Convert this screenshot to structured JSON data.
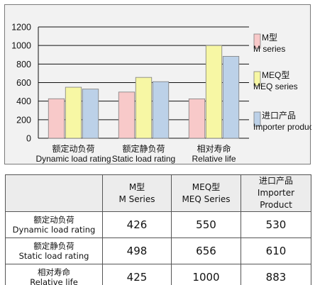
{
  "chart_data": {
    "type": "bar",
    "ylim": [
      0,
      1200
    ],
    "yticks": [
      0,
      200,
      400,
      600,
      800,
      1000,
      1200
    ],
    "grid": true,
    "legend_position": "right",
    "categories": [
      [
        "额定动负荷",
        "Dynamic load rating"
      ],
      [
        "额定静负荷",
        "Static load rating"
      ],
      [
        "相对寿命",
        "Relative life"
      ]
    ],
    "series": [
      {
        "label_lines": [
          "M型",
          "M series"
        ],
        "values": [
          426,
          498,
          425
        ],
        "color": "#f8c9c9"
      },
      {
        "label_lines": [
          "MEQ型",
          "MEQ series"
        ],
        "values": [
          550,
          656,
          1000
        ],
        "color": "#f7f7a4"
      },
      {
        "label_lines": [
          "进口产品",
          "Importer product"
        ],
        "values": [
          530,
          610,
          883
        ],
        "color": "#bcd1e8"
      }
    ]
  },
  "table": {
    "headers": [
      [
        "",
        ""
      ],
      [
        "M型",
        "M Series"
      ],
      [
        "MEQ型",
        "MEQ Series"
      ],
      [
        "进口产品",
        "Importer Product"
      ]
    ],
    "rows": [
      {
        "label": [
          "额定动负荷",
          "Dynamic load rating"
        ],
        "values": [
          "426",
          "550",
          "530"
        ]
      },
      {
        "label": [
          "额定静负荷",
          "Static load rating"
        ],
        "values": [
          "498",
          "656",
          "610"
        ]
      },
      {
        "label": [
          "相对寿命",
          "Relative life"
        ],
        "values": [
          "425",
          "1000",
          "883"
        ]
      }
    ]
  }
}
